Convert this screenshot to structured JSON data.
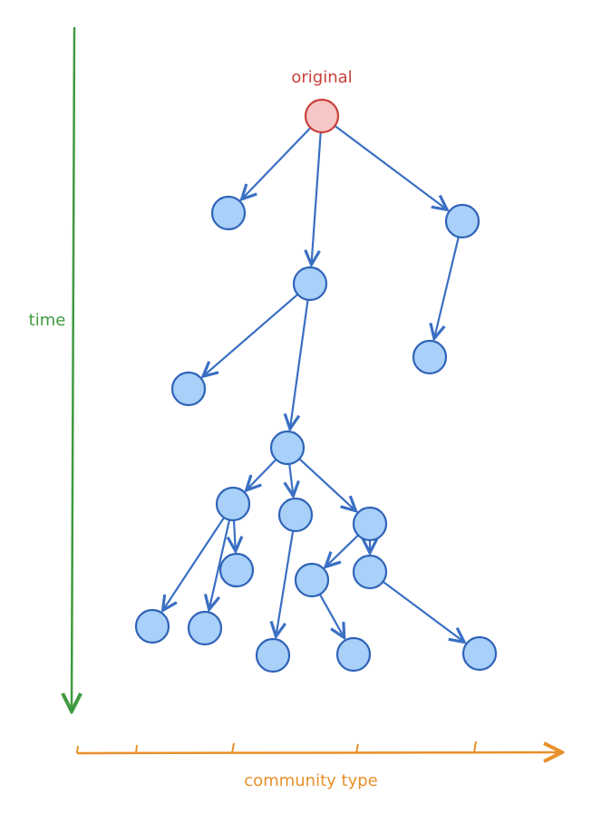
{
  "labels": {
    "root": "original",
    "y_axis": "time",
    "x_axis": "community type"
  }
}
